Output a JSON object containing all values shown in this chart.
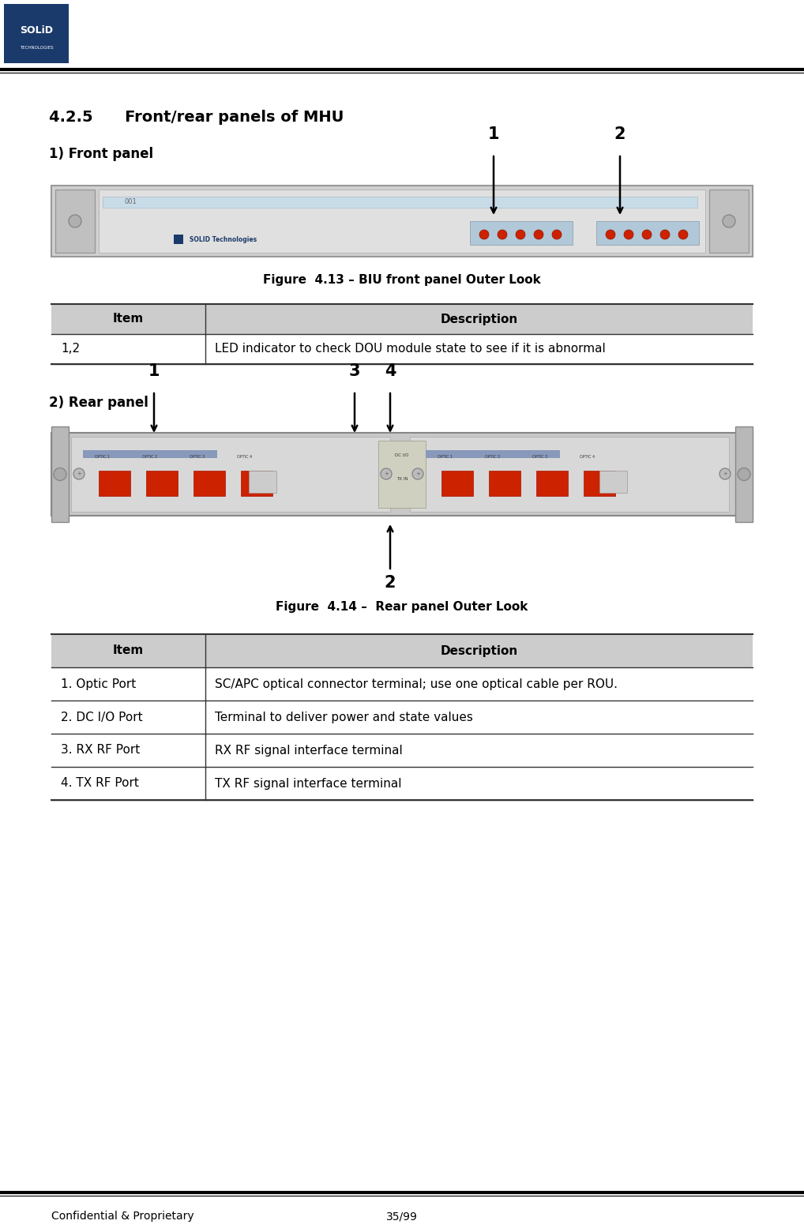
{
  "title_section": "4.2.5      Front/rear panels of MHU",
  "front_panel_label": "1) Front panel",
  "rear_panel_label": "2) Rear panel",
  "fig_caption_1": "Figure  4.13 – BIU front panel Outer Look",
  "fig_caption_2": "Figure  4.14 –  Rear panel Outer Look",
  "table1_header": [
    "Item",
    "Description"
  ],
  "table1_rows": [
    [
      "1,2",
      "LED indicator to check DOU module state to see if it is abnormal"
    ]
  ],
  "table2_header": [
    "Item",
    "Description"
  ],
  "table2_rows": [
    [
      "1. Optic Port",
      "SC/APC optical connector terminal; use one optical cable per ROU."
    ],
    [
      "2. DC I/O Port",
      "Terminal to deliver power and state values"
    ],
    [
      "3. RX RF Port",
      "RX RF signal interface terminal"
    ],
    [
      "4. TX RF Port",
      "TX RF signal interface terminal"
    ]
  ],
  "footer_left": "Confidential & Proprietary",
  "footer_right": "35/99",
  "table_header_bg": "#cccccc",
  "table_row_bg": "#ffffff",
  "table_border_color": "#000000",
  "body_bg": "#ffffff",
  "logo_box_color": "#1a3a6b"
}
